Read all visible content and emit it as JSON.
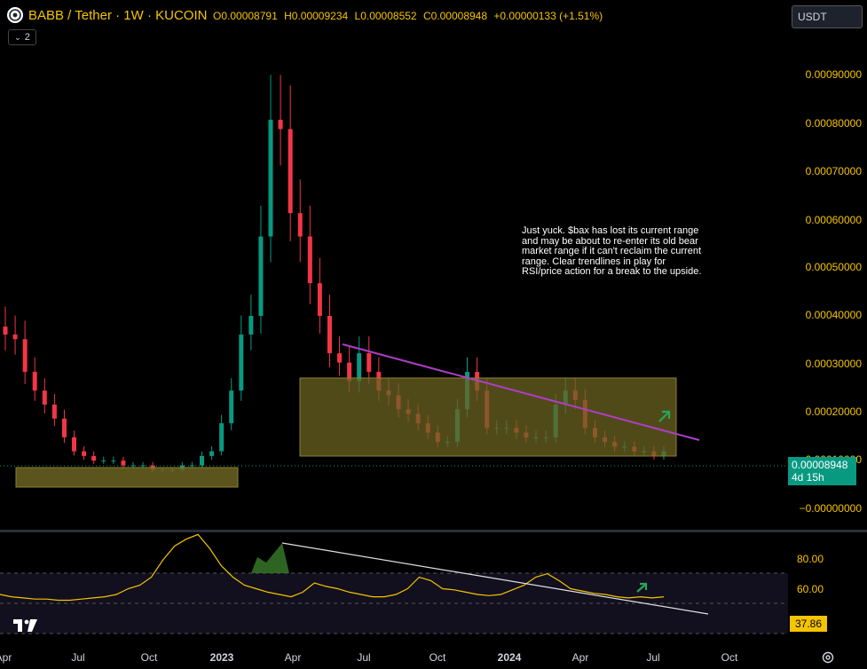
{
  "header": {
    "title": "BABB / Tether · 1W · KUCOIN",
    "ohlc": [
      {
        "key": "O",
        "value": "0.00008791"
      },
      {
        "key": "H",
        "value": "0.00009234"
      },
      {
        "key": "L",
        "value": "0.00008552"
      },
      {
        "key": "C",
        "value": "0.00008948"
      }
    ],
    "change": "+0.00000133 (+1.51%)",
    "indicator_count": "2"
  },
  "currency": "USDT",
  "price_axis": {
    "ticks": [
      "0.00090000",
      "0.00080000",
      "0.00070000",
      "0.00060000",
      "0.00050000",
      "0.00040000",
      "0.00030000",
      "0.00020000",
      "0.00010000",
      "−0.00000000"
    ],
    "last_price": "0.00008948",
    "countdown": "4d 15h"
  },
  "rsi_axis": {
    "ticks": [
      "80.00",
      "60.00"
    ],
    "value": "37.86"
  },
  "time_axis": [
    "Apr",
    "Jul",
    "Oct",
    "2023",
    "Apr",
    "Jul",
    "Oct",
    "2024",
    "Apr",
    "Jul",
    "Oct"
  ],
  "note": "Just yuck. $bax has lost its current range and may be about to re-enter its old bear market range if it can't reclaim the current range. Clear trendlines in play for RSI/price action for a break to the upside.",
  "colors": {
    "up": "#089981",
    "down": "#f23645",
    "accent": "#f5c400",
    "trend": "#b03dc8",
    "box": "#6b6322"
  },
  "icons": [
    "babb-logo-icon",
    "chevron-down-icon",
    "eye-icon",
    "tradingview-logo-icon",
    "settings-icon"
  ],
  "chart_data": {
    "type": "candlestick",
    "title": "BABB / Tether · 1W · KUCOIN",
    "y_range": [
      0,
      0.00095
    ],
    "series": [
      {
        "close": [
          0.00034,
          0.00033,
          0.00026,
          0.00022,
          0.00019,
          0.00016,
          0.00012,
          9e-05,
          8e-05,
          7e-05,
          7e-05,
          7e-05,
          6e-05,
          6e-05,
          6e-05,
          5e-05,
          5e-05,
          5e-05,
          6e-05,
          6e-05,
          8e-05,
          9e-05,
          0.00015,
          0.00022,
          0.00034,
          0.00038,
          0.00055,
          0.0008,
          0.00078,
          0.0006,
          0.00055,
          0.00045,
          0.00038,
          0.0003,
          0.00028,
          0.00024,
          0.0003,
          0.00026,
          0.00022,
          0.00021,
          0.00018,
          0.00017,
          0.00015,
          0.00013,
          0.00011,
          0.00011,
          0.00018,
          0.00026,
          0.00022,
          0.00014,
          0.00014,
          0.00014,
          0.00013,
          0.00012,
          0.00012,
          0.00012,
          0.00019,
          0.00022,
          0.0002,
          0.00014,
          0.00012,
          0.00011,
          0.0001,
          0.0001,
          9e-05,
          9e-05,
          8e-05,
          9e-05
        ]
      }
    ],
    "rsi": [
      40,
      38,
      37,
      36,
      36,
      35,
      35,
      36,
      37,
      38,
      40,
      45,
      48,
      55,
      70,
      82,
      88,
      92,
      80,
      65,
      55,
      48,
      45,
      42,
      40,
      38,
      42,
      50,
      47,
      45,
      42,
      40,
      38,
      38,
      40,
      45,
      55,
      52,
      45,
      44,
      42,
      40,
      39,
      40,
      44,
      48,
      55,
      58,
      52,
      45,
      43,
      41,
      40,
      38,
      37,
      38,
      37,
      38
    ]
  }
}
